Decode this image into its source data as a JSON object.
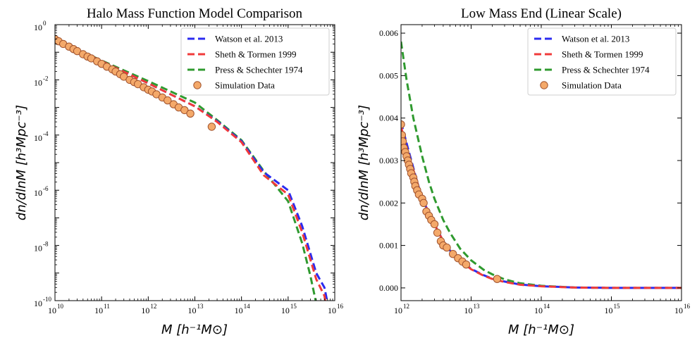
{
  "colors": {
    "watson": "#2b2bf0",
    "sheth": "#f03a3a",
    "press": "#2f9a2f",
    "sim_fill": "#f4a96a",
    "sim_edge": "#a0522d"
  },
  "chart_data": [
    {
      "type": "line",
      "title": "Halo Mass Function Model Comparison",
      "xlabel": "M [h⁻¹M⊙]",
      "ylabel": "dn/dlnM [h³Mpc⁻³]",
      "xscale": "log",
      "yscale": "log",
      "xlim": [
        10000000000.0,
        1e+16
      ],
      "ylim": [
        1e-10,
        1
      ],
      "x_ticks": [
        {
          "base": "10",
          "exp": "10"
        },
        {
          "base": "10",
          "exp": "11"
        },
        {
          "base": "10",
          "exp": "12"
        },
        {
          "base": "10",
          "exp": "13"
        },
        {
          "base": "10",
          "exp": "14"
        },
        {
          "base": "10",
          "exp": "15"
        },
        {
          "base": "10",
          "exp": "16"
        }
      ],
      "y_ticks": [
        {
          "base": "10",
          "exp": "-10"
        },
        {
          "base": "10",
          "exp": "-8"
        },
        {
          "base": "10",
          "exp": "-6"
        },
        {
          "base": "10",
          "exp": "-4"
        },
        {
          "base": "10",
          "exp": "-2"
        },
        {
          "base": "10",
          "exp": "0"
        }
      ],
      "legend": "top-right",
      "series": [
        {
          "name": "Watson et al. 2013",
          "style": "dashed",
          "x": [
            10000000000.0,
            100000000000.0,
            1000000000000.0,
            10000000000000.0,
            30000000000000.0,
            100000000000000.0,
            300000000000000.0,
            1000000000000000.0,
            2000000000000000.0,
            4000000000000000.0,
            6000000000000000.0,
            8000000000000000.0
          ],
          "y": [
            0.3,
            0.048,
            0.0075,
            0.0011,
            0.00032,
            6e-05,
            4.5e-06,
            1e-06,
            5e-08,
            1e-09,
            3e-10,
            2.8e-11
          ]
        },
        {
          "name": "Sheth & Tormen 1999",
          "style": "dashed",
          "x": [
            10000000000.0,
            100000000000.0,
            1000000000000.0,
            10000000000000.0,
            30000000000000.0,
            100000000000000.0,
            300000000000000.0,
            1000000000000000.0,
            2000000000000000.0,
            4000000000000000.0,
            6000000000000000.0,
            8000000000000000.0
          ],
          "y": [
            0.3,
            0.048,
            0.0075,
            0.0011,
            0.0003,
            5.5e-05,
            3.5e-06,
            7e-07,
            3e-08,
            6e-10,
            1.5e-10,
            1e-11
          ]
        },
        {
          "name": "Press & Schechter 1974",
          "style": "dashed",
          "x": [
            10000000000.0,
            100000000000.0,
            1000000000000.0,
            10000000000000.0,
            30000000000000.0,
            100000000000000.0,
            300000000000000.0,
            1000000000000000.0,
            2000000000000000.0,
            3000000000000000.0,
            4000000000000000.0,
            5000000000000000.0
          ],
          "y": [
            0.3,
            0.05,
            0.009,
            0.0015,
            0.00035,
            6.5e-05,
            5e-06,
            4e-07,
            1.2e-08,
            8e-10,
            8e-11,
            4e-12
          ]
        },
        {
          "name": "Simulation Data",
          "style": "scatter",
          "x": [
            10000000000.0,
            12000000000.0,
            15000000000.0,
            20000000000.0,
            25000000000.0,
            30000000000.0,
            40000000000.0,
            50000000000.0,
            60000000000.0,
            80000000000.0,
            100000000000.0,
            130000000000.0,
            170000000000.0,
            200000000000.0,
            250000000000.0,
            300000000000.0,
            400000000000.0,
            500000000000.0,
            600000000000.0,
            800000000000.0,
            1000000000000.0,
            1200000000000.0,
            1500000000000.0,
            2000000000000.0,
            2600000000000.0,
            3500000000000.0,
            4500000000000.0,
            6000000000000.0,
            8000000000000.0,
            23000000000000.0
          ],
          "y": [
            0.3,
            0.25,
            0.2,
            0.16,
            0.13,
            0.11,
            0.085,
            0.07,
            0.06,
            0.047,
            0.038,
            0.03,
            0.024,
            0.02,
            0.016,
            0.013,
            0.01,
            0.0083,
            0.007,
            0.0054,
            0.0044,
            0.0038,
            0.003,
            0.0023,
            0.0018,
            0.0013,
            0.001,
            0.0008,
            0.0006,
            0.0002
          ]
        }
      ]
    },
    {
      "type": "line",
      "title": "Low Mass End (Linear Scale)",
      "xlabel": "M [h⁻¹M⊙]",
      "ylabel": "dn/dlnM [h³Mpc⁻³]",
      "xscale": "log",
      "yscale": "linear",
      "xlim": [
        1000000000000.0,
        1e+16
      ],
      "ylim": [
        -0.0003,
        0.0062
      ],
      "x_ticks": [
        {
          "base": "10",
          "exp": "12"
        },
        {
          "base": "10",
          "exp": "13"
        },
        {
          "base": "10",
          "exp": "14"
        },
        {
          "base": "10",
          "exp": "15"
        },
        {
          "base": "10",
          "exp": "16"
        }
      ],
      "y_ticks": [
        "0.000",
        "0.001",
        "0.002",
        "0.003",
        "0.004",
        "0.005",
        "0.006"
      ],
      "legend": "top-right",
      "series": [
        {
          "name": "Watson et al. 2013",
          "style": "dashed",
          "x": [
            1000000000000.0,
            1300000000000.0,
            1700000000000.0,
            2000000000000.0,
            3000000000000.0,
            4000000000000.0,
            5000000000000.0,
            7000000000000.0,
            10000000000000.0,
            15000000000000.0,
            20000000000000.0,
            30000000000000.0,
            50000000000000.0,
            100000000000000.0,
            300000000000000.0,
            1000000000000000.0,
            1e+16
          ],
          "y": [
            0.0039,
            0.0032,
            0.0025,
            0.0021,
            0.0015,
            0.0011,
            0.00088,
            0.00065,
            0.00045,
            0.0003,
            0.00022,
            0.00015,
            8e-05,
            4e-05,
            1e-05,
            0,
            0
          ]
        },
        {
          "name": "Sheth & Tormen 1999",
          "style": "dashed",
          "x": [
            1000000000000.0,
            1300000000000.0,
            1700000000000.0,
            2000000000000.0,
            3000000000000.0,
            4000000000000.0,
            5000000000000.0,
            7000000000000.0,
            10000000000000.0,
            15000000000000.0,
            20000000000000.0,
            30000000000000.0,
            50000000000000.0,
            100000000000000.0,
            300000000000000.0,
            1000000000000000.0,
            1e+16
          ],
          "y": [
            0.0038,
            0.0031,
            0.0025,
            0.0021,
            0.0015,
            0.0011,
            0.00087,
            0.00064,
            0.00044,
            0.00029,
            0.00021,
            0.00014,
            7.5e-05,
            3.8e-05,
            9e-06,
            0,
            0
          ]
        },
        {
          "name": "Press & Schechter 1974",
          "style": "dashed",
          "x": [
            1000000000000.0,
            1200000000000.0,
            1500000000000.0,
            2000000000000.0,
            2500000000000.0,
            3000000000000.0,
            4000000000000.0,
            5000000000000.0,
            7000000000000.0,
            10000000000000.0,
            15000000000000.0,
            20000000000000.0,
            30000000000000.0,
            50000000000000.0,
            100000000000000.0,
            300000000000000.0,
            1000000000000000.0,
            1e+16
          ],
          "y": [
            0.0058,
            0.0049,
            0.004,
            0.0031,
            0.0025,
            0.0021,
            0.0016,
            0.0013,
            0.00092,
            0.00065,
            0.00043,
            0.00032,
            0.0002,
            0.00011,
            5e-05,
            1e-05,
            0,
            0
          ]
        },
        {
          "name": "Simulation Data",
          "style": "scatter",
          "x": [
            1000000000000.0,
            1030000000000.0,
            1060000000000.0,
            1100000000000.0,
            1150000000000.0,
            1200000000000.0,
            1250000000000.0,
            1300000000000.0,
            1350000000000.0,
            1400000000000.0,
            1500000000000.0,
            1550000000000.0,
            1600000000000.0,
            1700000000000.0,
            1800000000000.0,
            2000000000000.0,
            2100000000000.0,
            2300000000000.0,
            2500000000000.0,
            2700000000000.0,
            3000000000000.0,
            3300000000000.0,
            3700000000000.0,
            4000000000000.0,
            4500000000000.0,
            5500000000000.0,
            6500000000000.0,
            7500000000000.0,
            8500000000000.0,
            23500000000000.0
          ],
          "y": [
            0.00385,
            0.0036,
            0.00345,
            0.0033,
            0.0032,
            0.0031,
            0.003,
            0.0029,
            0.0028,
            0.0027,
            0.0026,
            0.0025,
            0.0024,
            0.0023,
            0.0022,
            0.0021,
            0.002,
            0.0018,
            0.0017,
            0.0016,
            0.0015,
            0.0013,
            0.0011,
            0.001,
            0.00095,
            0.0008,
            0.0007,
            0.00062,
            0.00055,
            0.00021
          ]
        }
      ]
    }
  ]
}
